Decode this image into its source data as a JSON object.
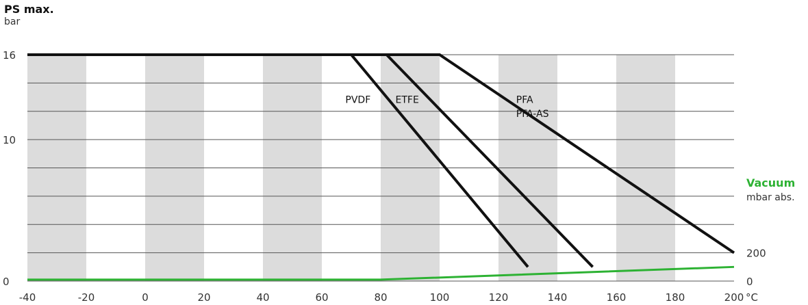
{
  "header": {
    "y_title": "PS max.",
    "y_unit": "bar",
    "vacuum_title": "Vacuum",
    "vacuum_unit": "mbar abs.",
    "x_unit": "°C"
  },
  "colors": {
    "pressure_lines": "#111111",
    "vacuum_line": "#2db233",
    "bands": "#dcdcdc",
    "grid": "#555555"
  },
  "chart_data": {
    "type": "line",
    "xlim": [
      -40,
      200
    ],
    "ylim": [
      0,
      16
    ],
    "x_ticks": [
      "-40",
      "-20",
      "0",
      "20",
      "40",
      "60",
      "80",
      "100",
      "120",
      "140",
      "160",
      "180",
      "200"
    ],
    "y_ticks_left": [
      "0",
      "10",
      "16"
    ],
    "y_ticks_right": [
      "0",
      "200"
    ],
    "shaded_bands": [
      [
        -40,
        -20
      ],
      [
        0,
        20
      ],
      [
        40,
        60
      ],
      [
        80,
        100
      ],
      [
        120,
        140
      ],
      [
        160,
        180
      ]
    ],
    "grid": true,
    "series": [
      {
        "name": "PVDF",
        "x": [
          -40,
          70,
          130
        ],
        "y": [
          16,
          16,
          1
        ]
      },
      {
        "name": "ETFE",
        "x": [
          -40,
          82,
          152
        ],
        "y": [
          16,
          16,
          1
        ]
      },
      {
        "name": "PFA\nPFA-AS",
        "x": [
          -40,
          100,
          200
        ],
        "y": [
          16,
          16,
          2
        ]
      },
      {
        "name": "Vacuum",
        "axis": "right",
        "x": [
          -40,
          80,
          200
        ],
        "y": [
          0.1,
          0.1,
          1
        ]
      }
    ],
    "series_labels": [
      {
        "text": "PVDF",
        "x": 68,
        "y": 12.6
      },
      {
        "text": "ETFE",
        "x": 85,
        "y": 12.6
      },
      {
        "text": "PFA",
        "x": 126,
        "y": 12.6
      },
      {
        "text": "PFA-AS",
        "x": 126,
        "y": 11.6
      }
    ]
  }
}
